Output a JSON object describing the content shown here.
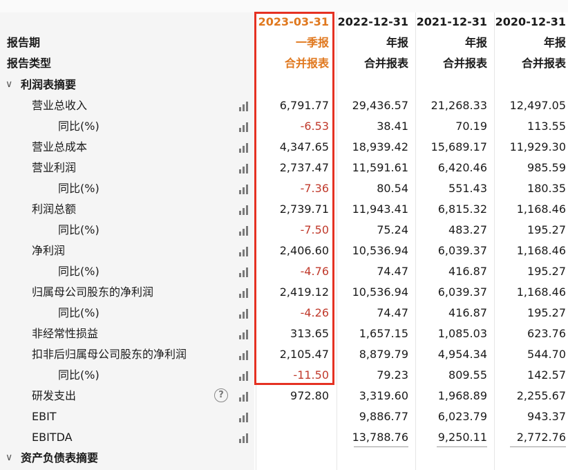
{
  "header": {
    "period_label": "报告期",
    "type_label": "报告类型",
    "columns": [
      {
        "date": "2023-03-31",
        "period": "一季报",
        "type": "合并报表"
      },
      {
        "date": "2022-12-31",
        "period": "年报",
        "type": "合并报表"
      },
      {
        "date": "2021-12-31",
        "period": "年报",
        "type": "合并报表"
      },
      {
        "date": "2020-12-31",
        "period": "年报",
        "type": "合并报表"
      }
    ]
  },
  "sections": {
    "income": {
      "title": "利润表摘要",
      "chevron": "chevron-down-icon"
    },
    "balance": {
      "title": "资产负债表摘要",
      "chevron": "chevron-down-icon"
    }
  },
  "rows": [
    {
      "label": "营业总收入",
      "values": [
        "6,791.77",
        "29,436.57",
        "21,268.33",
        "12,497.05"
      ]
    },
    {
      "label": "同比(%)",
      "values": [
        "-6.53",
        "38.41",
        "70.19",
        "113.55"
      ]
    },
    {
      "label": "营业总成本",
      "values": [
        "4,347.65",
        "18,939.42",
        "15,689.17",
        "11,929.30"
      ]
    },
    {
      "label": "营业利润",
      "values": [
        "2,737.47",
        "11,591.61",
        "6,420.46",
        "985.59"
      ]
    },
    {
      "label": "同比(%)",
      "values": [
        "-7.36",
        "80.54",
        "551.43",
        "180.35"
      ]
    },
    {
      "label": "利润总额",
      "values": [
        "2,739.71",
        "11,943.41",
        "6,815.32",
        "1,168.46"
      ]
    },
    {
      "label": "同比(%)",
      "values": [
        "-7.50",
        "75.24",
        "483.27",
        "195.27"
      ]
    },
    {
      "label": "净利润",
      "values": [
        "2,406.60",
        "10,536.94",
        "6,039.37",
        "1,168.46"
      ]
    },
    {
      "label": "同比(%)",
      "values": [
        "-4.76",
        "74.47",
        "416.87",
        "195.27"
      ]
    },
    {
      "label": "归属母公司股东的净利润",
      "values": [
        "2,419.12",
        "10,536.94",
        "6,039.37",
        "1,168.46"
      ]
    },
    {
      "label": "同比(%)",
      "values": [
        "-4.26",
        "74.47",
        "416.87",
        "195.27"
      ]
    },
    {
      "label": "非经常性损益",
      "values": [
        "313.65",
        "1,657.15",
        "1,085.03",
        "623.76"
      ]
    },
    {
      "label": "扣非后归属母公司股东的净利润",
      "values": [
        "2,105.47",
        "8,879.79",
        "4,954.34",
        "544.70"
      ]
    },
    {
      "label": "同比(%)",
      "values": [
        "-11.50",
        "79.23",
        "809.55",
        "142.57"
      ]
    },
    {
      "label": "研发支出",
      "values": [
        "972.80",
        "3,319.60",
        "1,968.89",
        "2,255.67"
      ],
      "help_icon": "?"
    },
    {
      "label": "EBIT",
      "values": [
        "",
        "9,886.77",
        "6,023.79",
        "943.37"
      ]
    },
    {
      "label": "EBITDA",
      "values": [
        "",
        "13,788.76",
        "9,250.11",
        "2,772.76"
      ]
    }
  ],
  "colors": {
    "highlight_border": "#e53122",
    "current_period_text": "#e0781e",
    "negative_value": "#c0392b",
    "label_column_bg": "#f5f5f5"
  },
  "icons": {
    "trend": "bar-chart-icon",
    "help": "help-circle-icon"
  }
}
